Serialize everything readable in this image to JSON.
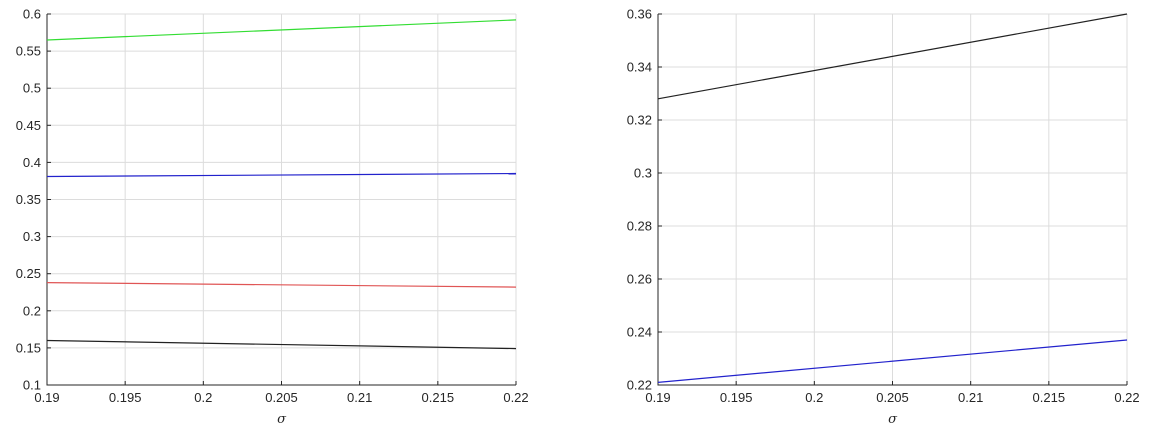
{
  "chart_data": [
    {
      "type": "line",
      "title": "",
      "xlabel": "σ",
      "ylabel": "",
      "xlim": [
        0.19,
        0.22
      ],
      "ylim": [
        0.1,
        0.6
      ],
      "grid": true,
      "x_ticks": [
        "0.19",
        "0.195",
        "0.2",
        "0.205",
        "0.21",
        "0.215",
        "0.22"
      ],
      "y_ticks": [
        "0.1",
        "0.15",
        "0.2",
        "0.25",
        "0.3",
        "0.35",
        "0.4",
        "0.45",
        "0.5",
        "0.55",
        "0.6"
      ],
      "series": [
        {
          "color": "#33dd33",
          "x": [
            0.19,
            0.22
          ],
          "y": [
            0.565,
            0.592
          ]
        },
        {
          "color": "#2222cc",
          "x": [
            0.19,
            0.22
          ],
          "y": [
            0.381,
            0.385
          ]
        },
        {
          "color": "#e05555",
          "x": [
            0.19,
            0.22
          ],
          "y": [
            0.238,
            0.232
          ]
        },
        {
          "color": "#222222",
          "x": [
            0.19,
            0.22
          ],
          "y": [
            0.16,
            0.149
          ]
        }
      ]
    },
    {
      "type": "line",
      "title": "",
      "xlabel": "σ",
      "ylabel": "",
      "xlim": [
        0.19,
        0.22
      ],
      "ylim": [
        0.22,
        0.36
      ],
      "grid": true,
      "x_ticks": [
        "0.19",
        "0.195",
        "0.2",
        "0.205",
        "0.21",
        "0.215",
        "0.22"
      ],
      "y_ticks": [
        "0.22",
        "0.24",
        "0.26",
        "0.28",
        "0.3",
        "0.32",
        "0.34",
        "0.36"
      ],
      "series": [
        {
          "color": "#222222",
          "x": [
            0.19,
            0.22
          ],
          "y": [
            0.328,
            0.36
          ]
        },
        {
          "color": "#2222cc",
          "x": [
            0.19,
            0.22
          ],
          "y": [
            0.221,
            0.237
          ]
        }
      ]
    }
  ]
}
